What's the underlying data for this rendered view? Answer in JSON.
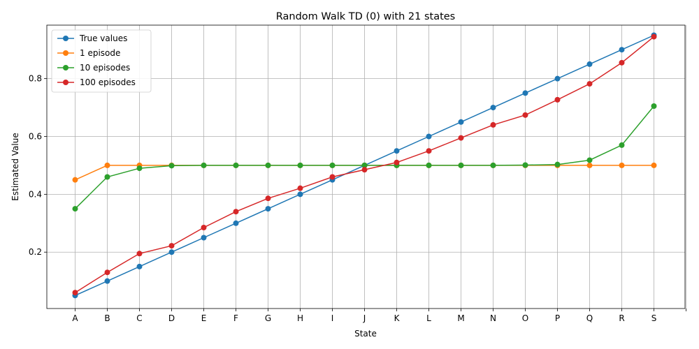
{
  "chart_data": {
    "type": "line",
    "title": "Random Walk TD (0) with 21 states",
    "xlabel": "State",
    "ylabel": "Estimated Value",
    "categories": [
      "A",
      "B",
      "C",
      "D",
      "E",
      "F",
      "G",
      "H",
      "I",
      "J",
      "K",
      "L",
      "M",
      "N",
      "O",
      "P",
      "Q",
      "R",
      "S"
    ],
    "x_tick_labels": [
      "A",
      "B",
      "C",
      "D",
      "E",
      "F",
      "G",
      "H",
      "I",
      "J",
      "K",
      "L",
      "M",
      "N",
      "O",
      "P",
      "Q",
      "R",
      "S",
      ""
    ],
    "yticks": [
      0.2,
      0.4,
      0.6,
      0.8
    ],
    "ytick_labels": [
      "0.2",
      "0.4",
      "0.6",
      "0.8"
    ],
    "ylim": [
      0.005,
      0.985
    ],
    "grid": true,
    "legend_position": "top-left",
    "series": [
      {
        "name": "True values",
        "color": "#1f77b4",
        "values": [
          0.05,
          0.1,
          0.15,
          0.2,
          0.25,
          0.3,
          0.35,
          0.4,
          0.45,
          0.5,
          0.55,
          0.6,
          0.65,
          0.7,
          0.75,
          0.8,
          0.85,
          0.9,
          0.95
        ]
      },
      {
        "name": "1 episode",
        "color": "#ff7f0e",
        "values": [
          0.45,
          0.5,
          0.5,
          0.5,
          0.5,
          0.5,
          0.5,
          0.5,
          0.5,
          0.5,
          0.5,
          0.5,
          0.5,
          0.5,
          0.5,
          0.5,
          0.5,
          0.5,
          0.5
        ]
      },
      {
        "name": "10 episodes",
        "color": "#2ca02c",
        "values": [
          0.35,
          0.46,
          0.49,
          0.499,
          0.5,
          0.5,
          0.5,
          0.5,
          0.5,
          0.5,
          0.5,
          0.5,
          0.5,
          0.5,
          0.501,
          0.503,
          0.518,
          0.57,
          0.705
        ]
      },
      {
        "name": "100 episodes",
        "color": "#d62728",
        "values": [
          0.06,
          0.13,
          0.195,
          0.222,
          0.285,
          0.34,
          0.386,
          0.421,
          0.46,
          0.485,
          0.51,
          0.55,
          0.595,
          0.64,
          0.674,
          0.727,
          0.782,
          0.855,
          0.945
        ]
      }
    ]
  }
}
